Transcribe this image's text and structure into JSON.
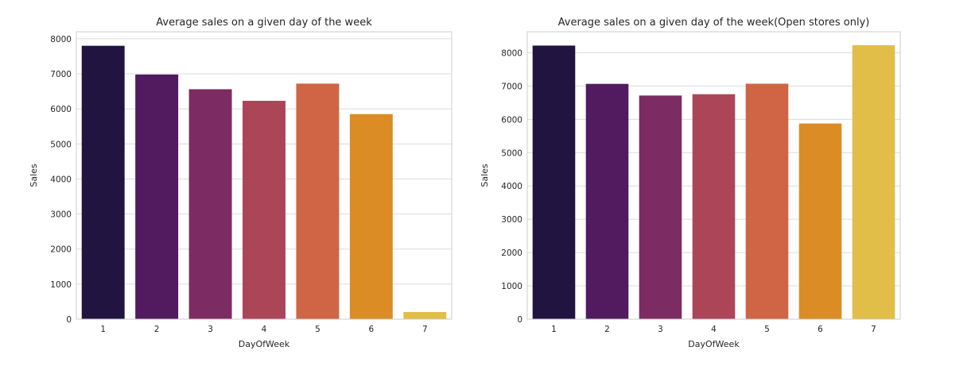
{
  "chart_data": [
    {
      "type": "bar",
      "title": "Average sales on a given day of the week",
      "xlabel": "DayOfWeek",
      "ylabel": "Sales",
      "categories": [
        "1",
        "2",
        "3",
        "4",
        "5",
        "6",
        "7"
      ],
      "values": [
        7800,
        6980,
        6560,
        6230,
        6720,
        5850,
        205
      ],
      "ylim": [
        0,
        8200
      ],
      "yticks": [
        0,
        1000,
        2000,
        3000,
        4000,
        5000,
        6000,
        7000,
        8000
      ],
      "ytick_labels": [
        "0",
        "1000",
        "2000",
        "3000",
        "4000",
        "5000",
        "6000",
        "7000",
        "8000"
      ],
      "grid": true,
      "colors": [
        "#221441",
        "#521a5f",
        "#7c2c62",
        "#ad4558",
        "#cf6545",
        "#dc8c25",
        "#e1be48"
      ]
    },
    {
      "type": "bar",
      "title": "Average sales on a given day of the week(Open stores only)",
      "xlabel": "DayOfWeek",
      "ylabel": "Sales",
      "categories": [
        "1",
        "2",
        "3",
        "4",
        "5",
        "6",
        "7"
      ],
      "values": [
        8215,
        7065,
        6715,
        6755,
        7070,
        5875,
        8225
      ],
      "ylim": [
        0,
        8630
      ],
      "yticks": [
        0,
        1000,
        2000,
        3000,
        4000,
        5000,
        6000,
        7000,
        8000
      ],
      "ytick_labels": [
        "0",
        "1000",
        "2000",
        "3000",
        "4000",
        "5000",
        "6000",
        "7000",
        "8000"
      ],
      "grid": true,
      "colors": [
        "#221441",
        "#521a5f",
        "#7c2c62",
        "#ad4558",
        "#cf6545",
        "#dc8c25",
        "#e1be48"
      ]
    }
  ]
}
